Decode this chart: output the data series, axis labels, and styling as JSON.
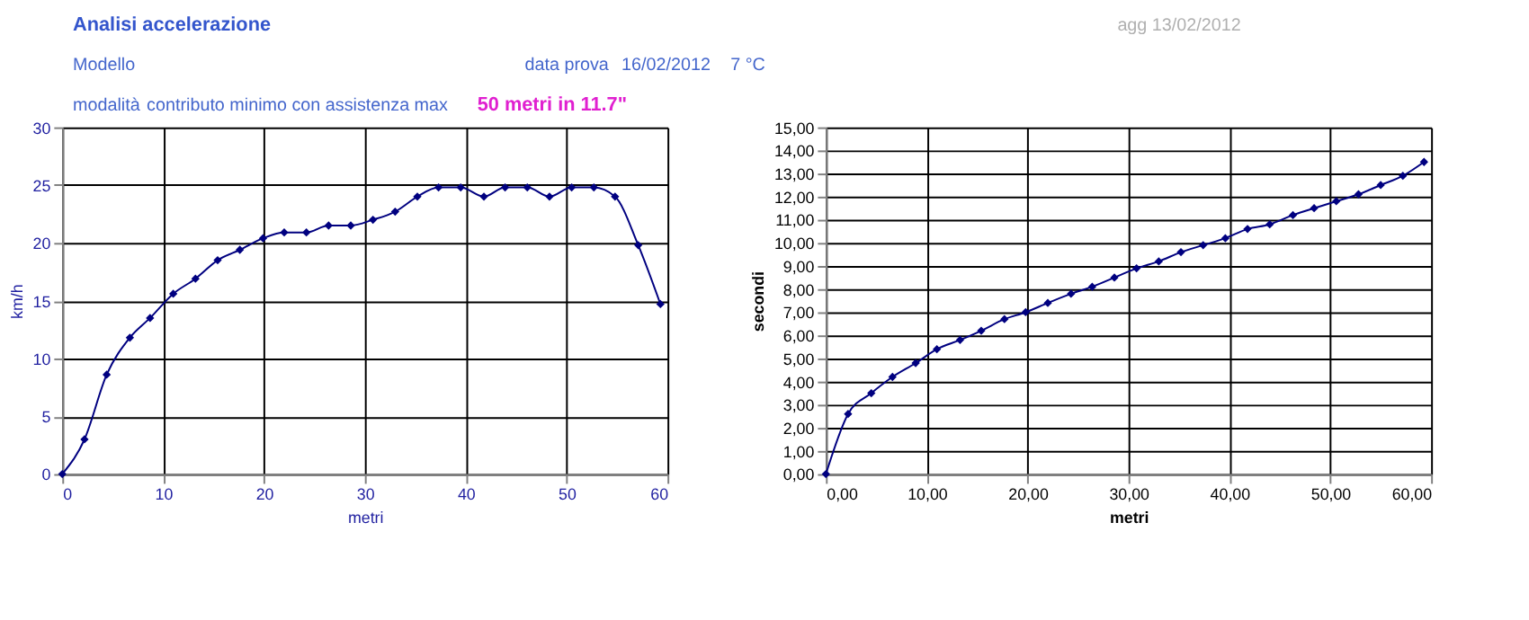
{
  "chart_data": [
    {
      "type": "line",
      "title": "Analisi accelerazione",
      "annotations": [
        "agg 13/02/2012",
        "Modello",
        "data prova",
        "16/02/2012",
        "7 °C",
        "modalità",
        "contributo minimo con assistenza max",
        "50 metri in 11.7\""
      ],
      "xlabel": "metri",
      "ylabel": "km/h",
      "x": [
        0,
        2.2,
        4.4,
        6.7,
        8.7,
        11.0,
        13.2,
        15.4,
        17.6,
        19.9,
        22.0,
        24.2,
        26.4,
        28.6,
        30.8,
        33.0,
        35.2,
        37.3,
        39.5,
        41.8,
        43.9,
        46.1,
        48.3,
        50.5,
        52.7,
        54.8,
        57.1,
        59.3
      ],
      "series": [
        {
          "color": "#000080",
          "values": [
            0,
            3.0,
            8.6,
            11.8,
            13.5,
            15.6,
            16.9,
            18.5,
            19.4,
            20.4,
            20.9,
            20.9,
            21.5,
            21.5,
            22.0,
            22.7,
            24.0,
            24.8,
            24.8,
            24.0,
            24.8,
            24.8,
            24.0,
            24.8,
            24.8,
            24.0,
            19.8,
            14.7
          ]
        }
      ],
      "xlim": [
        0,
        60
      ],
      "xticks": [
        0,
        10,
        20,
        30,
        40,
        50,
        60
      ],
      "ylim": [
        0,
        30
      ],
      "yticks": [
        0,
        5,
        10,
        15,
        20,
        25,
        30
      ],
      "grid": true,
      "marker": "diamond",
      "line_style": "solid"
    },
    {
      "type": "line",
      "xlabel": "metri",
      "ylabel": "secondi",
      "x": [
        0,
        2.2,
        4.5,
        6.6,
        8.9,
        11.0,
        13.3,
        15.4,
        17.7,
        19.8,
        22.0,
        24.3,
        26.4,
        28.6,
        30.8,
        33.0,
        35.2,
        37.4,
        39.6,
        41.8,
        44.0,
        46.3,
        48.4,
        50.6,
        52.8,
        55.0,
        57.2,
        59.3
      ],
      "series": [
        {
          "color": "#000080",
          "values": [
            0,
            2.6,
            3.5,
            4.2,
            4.8,
            5.4,
            5.8,
            6.2,
            6.7,
            7.0,
            7.4,
            7.8,
            8.1,
            8.5,
            8.9,
            9.2,
            9.6,
            9.9,
            10.2,
            10.6,
            10.8,
            11.2,
            11.5,
            11.8,
            12.1,
            12.5,
            12.9,
            13.5
          ]
        }
      ],
      "xlim": [
        0,
        60
      ],
      "xticks": [
        {
          "value": 0,
          "label": "0,00"
        },
        {
          "value": 10,
          "label": "10,00"
        },
        {
          "value": 20,
          "label": "20,00"
        },
        {
          "value": 30,
          "label": "30,00"
        },
        {
          "value": 40,
          "label": "40,00"
        },
        {
          "value": 50,
          "label": "50,00"
        },
        {
          "value": 60,
          "label": "60,00"
        }
      ],
      "ylim": [
        0,
        15
      ],
      "yticks": [
        {
          "value": 0,
          "label": "0,00"
        },
        {
          "value": 1,
          "label": "1,00"
        },
        {
          "value": 2,
          "label": "2,00"
        },
        {
          "value": 3,
          "label": "3,00"
        },
        {
          "value": 4,
          "label": "4,00"
        },
        {
          "value": 5,
          "label": "5,00"
        },
        {
          "value": 6,
          "label": "6,00"
        },
        {
          "value": 7,
          "label": "7,00"
        },
        {
          "value": 8,
          "label": "8,00"
        },
        {
          "value": 9,
          "label": "9,00"
        },
        {
          "value": 10,
          "label": "10,00"
        },
        {
          "value": 11,
          "label": "11,00"
        },
        {
          "value": 12,
          "label": "12,00"
        },
        {
          "value": 13,
          "label": "13,00"
        },
        {
          "value": 14,
          "label": "14,00"
        },
        {
          "value": 15,
          "label": "15,00"
        }
      ],
      "grid": true,
      "marker": "diamond",
      "line_style": "solid"
    }
  ]
}
